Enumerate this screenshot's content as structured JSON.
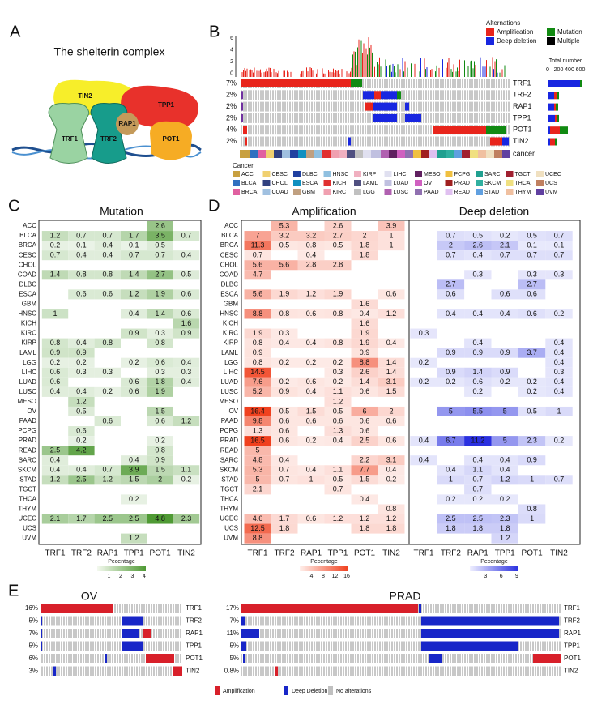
{
  "panels": {
    "a": {
      "letter": "A",
      "title": "The shelterin complex",
      "proteins": [
        "TIN2",
        "TPP1",
        "RAP1",
        "TRF1",
        "TRF2",
        "POT1"
      ]
    },
    "b": {
      "letter": "B",
      "legend_title": "Alternations",
      "legend": [
        "Amplification",
        "Mutation",
        "Deep deletion",
        "Multiple"
      ],
      "y_ticks": [
        6,
        4,
        2,
        0
      ],
      "genes": [
        {
          "pct": "7%",
          "name": "TRF1"
        },
        {
          "pct": "2%",
          "name": "TRF2"
        },
        {
          "pct": "2%",
          "name": "RAP1"
        },
        {
          "pct": "2%",
          "name": "TPP1"
        },
        {
          "pct": "4%",
          "name": "POT1"
        },
        {
          "pct": "2%",
          "name": "TIN2"
        }
      ],
      "total_title": "Total number",
      "total_ticks": [
        0,
        200,
        400,
        600
      ],
      "track": "cancer",
      "cancer_title": "Cancer",
      "cancers": [
        {
          "name": "ACC",
          "color": "#c8a040"
        },
        {
          "name": "BLCA",
          "color": "#3070c0"
        },
        {
          "name": "BRCA",
          "color": "#e060a0"
        },
        {
          "name": "CESC",
          "color": "#f0d070"
        },
        {
          "name": "CHOL",
          "color": "#304080"
        },
        {
          "name": "COAD",
          "color": "#a0c0e0"
        },
        {
          "name": "DLBC",
          "color": "#2040a0"
        },
        {
          "name": "ESCA",
          "color": "#1090c0"
        },
        {
          "name": "GBM",
          "color": "#c0a080"
        },
        {
          "name": "HNSC",
          "color": "#90c0e0"
        },
        {
          "name": "KICH",
          "color": "#e03030"
        },
        {
          "name": "KIRC",
          "color": "#f0a0b0"
        },
        {
          "name": "KIRP",
          "color": "#f0b0c0"
        },
        {
          "name": "LAML",
          "color": "#505080"
        },
        {
          "name": "LGG",
          "color": "#c0c0c0"
        },
        {
          "name": "LIHC",
          "color": "#e0e0f0"
        },
        {
          "name": "LUAD",
          "color": "#c0c0e0"
        },
        {
          "name": "LUSC",
          "color": "#b060b0"
        },
        {
          "name": "MESO",
          "color": "#602060"
        },
        {
          "name": "OV",
          "color": "#d060c0"
        },
        {
          "name": "PAAD",
          "color": "#9070b0"
        },
        {
          "name": "PCPG",
          "color": "#f0c040"
        },
        {
          "name": "PRAD",
          "color": "#a02020"
        },
        {
          "name": "READ",
          "color": "#e0c0f0"
        },
        {
          "name": "SARC",
          "color": "#20a090"
        },
        {
          "name": "SKCM",
          "color": "#30b0a0"
        },
        {
          "name": "STAD",
          "color": "#60a0e0"
        },
        {
          "name": "TGCT",
          "color": "#a02030"
        },
        {
          "name": "THCA",
          "color": "#f0e080"
        },
        {
          "name": "THYM",
          "color": "#f0c0a0"
        },
        {
          "name": "UCEC",
          "color": "#f0e0c0"
        },
        {
          "name": "UCS",
          "color": "#c08060"
        },
        {
          "name": "UVM",
          "color": "#6040a0"
        }
      ]
    },
    "c": {
      "letter": "C",
      "title": "Mutation",
      "rows": [
        "ACC",
        "BLCA",
        "BRCA",
        "CESC",
        "CHOL",
        "COAD",
        "DLBC",
        "ESCA",
        "GBM",
        "HNSC",
        "KICH",
        "KIRC",
        "KIRP",
        "LAML",
        "LGG",
        "LIHC",
        "LUAD",
        "LUSC",
        "MESO",
        "OV",
        "PAAD",
        "PCPG",
        "PRAD",
        "READ",
        "SARC",
        "SKCM",
        "STAD",
        "TGCT",
        "THCA",
        "THYM",
        "UCEC",
        "UCS",
        "UVM"
      ],
      "columns": [
        "TRF1",
        "TRF2",
        "RAP1",
        "TPP1",
        "POT1",
        "TIN2"
      ],
      "values": [
        [
          null,
          null,
          null,
          null,
          2.6,
          null
        ],
        [
          1.2,
          0.7,
          0.7,
          1.7,
          3.5,
          0.7
        ],
        [
          0.2,
          0.1,
          0.4,
          0.1,
          0.5,
          null
        ],
        [
          0.7,
          0.4,
          0.4,
          0.7,
          0.7,
          0.4
        ],
        [
          null,
          null,
          null,
          null,
          null,
          null
        ],
        [
          1.4,
          0.8,
          0.8,
          1.4,
          2.7,
          0.5
        ],
        [
          null,
          null,
          null,
          null,
          null,
          null
        ],
        [
          null,
          0.6,
          0.6,
          1.2,
          1.9,
          0.6
        ],
        [
          null,
          null,
          null,
          null,
          null,
          null
        ],
        [
          1,
          null,
          null,
          0.4,
          1.4,
          0.6
        ],
        [
          null,
          null,
          null,
          null,
          null,
          1.6
        ],
        [
          null,
          null,
          null,
          0.9,
          0.3,
          0.9
        ],
        [
          0.8,
          0.4,
          0.8,
          null,
          0.8,
          null
        ],
        [
          0.9,
          0.9,
          null,
          null,
          null,
          null
        ],
        [
          0.2,
          0.2,
          null,
          0.2,
          0.6,
          0.4
        ],
        [
          0.6,
          0.3,
          0.3,
          null,
          0.3,
          0.3
        ],
        [
          0.6,
          null,
          null,
          0.6,
          1.8,
          0.4
        ],
        [
          0.4,
          0.4,
          0.2,
          0.6,
          1.9,
          null
        ],
        [
          null,
          1.2,
          null,
          null,
          null,
          null
        ],
        [
          null,
          0.5,
          null,
          null,
          1.5,
          null
        ],
        [
          null,
          null,
          0.6,
          null,
          0.6,
          1.2
        ],
        [
          null,
          0.6,
          null,
          null,
          null,
          null
        ],
        [
          null,
          0.2,
          null,
          null,
          0.2,
          null
        ],
        [
          2.5,
          4.2,
          null,
          null,
          0.8,
          null
        ],
        [
          0.4,
          null,
          null,
          0.4,
          0.9,
          null
        ],
        [
          0.4,
          0.4,
          0.7,
          3.9,
          1.5,
          1.1
        ],
        [
          1.2,
          2.5,
          1.2,
          1.5,
          2,
          0.2
        ],
        [
          null,
          null,
          null,
          null,
          null,
          null
        ],
        [
          null,
          null,
          null,
          0.2,
          null,
          null
        ],
        [
          null,
          null,
          null,
          null,
          null,
          null
        ],
        [
          2.1,
          1.7,
          2.5,
          2.5,
          4.8,
          2.3
        ],
        [
          null,
          null,
          null,
          null,
          null,
          null
        ],
        [
          null,
          null,
          null,
          1.2,
          null,
          null
        ]
      ],
      "legend_title": "Pecentage",
      "legend_ticks": [
        1,
        2,
        3,
        4
      ]
    },
    "d": {
      "letter": "D",
      "rows": [
        "ACC",
        "BLCA",
        "BRCA",
        "CESC",
        "CHOL",
        "COAD",
        "DLBC",
        "ESCA",
        "GBM",
        "HNSC",
        "KICH",
        "KIRC",
        "KIRP",
        "LAML",
        "LGG",
        "LIHC",
        "LUAD",
        "LUSC",
        "MESO",
        "OV",
        "PAAD",
        "PCPG",
        "PRAD",
        "READ",
        "SARC",
        "SKCM",
        "STAD",
        "TGCT",
        "THCA",
        "THYM",
        "UCEC",
        "UCS",
        "UVM"
      ],
      "columns": [
        "TRF1",
        "TRF2",
        "RAP1",
        "TPP1",
        "POT1",
        "TIN2"
      ],
      "amplification": {
        "title": "Amplification",
        "legend_title": "Pecentage",
        "legend_ticks": [
          4,
          8,
          12,
          16
        ],
        "values": [
          [
            null,
            5.3,
            null,
            2.6,
            null,
            3.9
          ],
          [
            7,
            3.2,
            3.2,
            2.7,
            2,
            1
          ],
          [
            11.3,
            0.5,
            0.8,
            0.5,
            1.8,
            1
          ],
          [
            0.7,
            null,
            0.4,
            null,
            1.8,
            null
          ],
          [
            5.6,
            5.6,
            2.8,
            2.8,
            null,
            null
          ],
          [
            4.7,
            null,
            null,
            null,
            null,
            null
          ],
          [
            null,
            null,
            null,
            null,
            null,
            null
          ],
          [
            5.6,
            1.9,
            1.2,
            1.9,
            null,
            0.6
          ],
          [
            null,
            null,
            null,
            null,
            1.6,
            null
          ],
          [
            8.8,
            0.8,
            0.6,
            0.8,
            0.4,
            1.2
          ],
          [
            null,
            null,
            null,
            null,
            1.6,
            null
          ],
          [
            1.9,
            0.3,
            null,
            null,
            1.9,
            null
          ],
          [
            0.8,
            0.4,
            0.4,
            0.8,
            1.9,
            0.4
          ],
          [
            0.9,
            null,
            null,
            null,
            0.9,
            null
          ],
          [
            0.8,
            0.2,
            0.2,
            0.2,
            8.8,
            1.4
          ],
          [
            14.5,
            null,
            null,
            0.3,
            2.6,
            1.4
          ],
          [
            7.6,
            0.2,
            0.6,
            0.2,
            1.4,
            3.1
          ],
          [
            5.2,
            0.9,
            0.4,
            1.1,
            0.6,
            1.5
          ],
          [
            null,
            null,
            null,
            1.2,
            null,
            null
          ],
          [
            16.4,
            0.5,
            1.5,
            0.5,
            6,
            2
          ],
          [
            9.8,
            0.6,
            0.6,
            0.6,
            0.6,
            0.6
          ],
          [
            1.3,
            0.6,
            null,
            1.3,
            0.6,
            null
          ],
          [
            16.5,
            0.6,
            0.2,
            0.4,
            2.5,
            0.6
          ],
          [
            5,
            null,
            null,
            null,
            null,
            null
          ],
          [
            4.8,
            0.4,
            null,
            null,
            2.2,
            3.1
          ],
          [
            5.3,
            0.7,
            0.4,
            1.1,
            7.7,
            0.4
          ],
          [
            5,
            0.7,
            1,
            0.5,
            1.5,
            0.2
          ],
          [
            2.1,
            null,
            null,
            0.7,
            null,
            null
          ],
          [
            null,
            null,
            null,
            null,
            0.4,
            null
          ],
          [
            null,
            null,
            null,
            null,
            null,
            0.8
          ],
          [
            4.6,
            1.7,
            0.6,
            1.2,
            1.2,
            1.2
          ],
          [
            12.5,
            1.8,
            null,
            null,
            1.8,
            1.8
          ],
          [
            8.8,
            null,
            null,
            null,
            null,
            null
          ]
        ]
      },
      "deletion": {
        "title": "Deep deletion",
        "legend_title": "Pecentage",
        "legend_ticks": [
          3,
          6,
          9
        ],
        "values": [
          [
            null,
            null,
            null,
            null,
            null,
            null
          ],
          [
            null,
            0.7,
            0.5,
            0.2,
            0.5,
            0.7
          ],
          [
            null,
            2,
            2.6,
            2.1,
            0.1,
            0.1
          ],
          [
            null,
            0.7,
            0.4,
            0.7,
            0.7,
            0.7
          ],
          [
            null,
            null,
            null,
            null,
            null,
            null
          ],
          [
            null,
            null,
            0.3,
            null,
            0.3,
            0.3
          ],
          [
            null,
            2.7,
            null,
            null,
            2.7,
            null
          ],
          [
            null,
            0.6,
            null,
            0.6,
            0.6,
            null
          ],
          [
            null,
            null,
            null,
            null,
            null,
            null
          ],
          [
            null,
            0.4,
            0.4,
            0.4,
            0.6,
            0.2
          ],
          [
            null,
            null,
            null,
            null,
            null,
            null
          ],
          [
            0.3,
            null,
            null,
            null,
            null,
            null
          ],
          [
            null,
            null,
            0.4,
            null,
            null,
            0.4
          ],
          [
            null,
            0.9,
            0.9,
            0.9,
            3.7,
            0.4
          ],
          [
            0.2,
            null,
            null,
            null,
            null,
            0.4
          ],
          [
            null,
            0.9,
            1.4,
            0.9,
            null,
            0.3
          ],
          [
            0.2,
            0.2,
            0.6,
            0.2,
            0.2,
            0.4
          ],
          [
            null,
            null,
            0.2,
            null,
            0.2,
            0.4
          ],
          [
            null,
            null,
            null,
            null,
            null,
            null
          ],
          [
            null,
            5,
            5.5,
            5,
            0.5,
            1
          ],
          [
            null,
            null,
            null,
            null,
            null,
            null
          ],
          [
            null,
            null,
            null,
            null,
            null,
            null
          ],
          [
            0.4,
            6.7,
            11.2,
            5,
            2.3,
            0.2
          ],
          [
            null,
            null,
            null,
            null,
            null,
            null
          ],
          [
            0.4,
            null,
            0.4,
            0.4,
            0.9,
            null
          ],
          [
            null,
            0.4,
            1.1,
            0.4,
            null,
            null
          ],
          [
            null,
            1,
            0.7,
            1.2,
            1,
            0.7
          ],
          [
            null,
            null,
            0.7,
            null,
            null,
            null
          ],
          [
            null,
            0.2,
            0.2,
            0.2,
            null,
            null
          ],
          [
            null,
            null,
            null,
            null,
            0.8,
            null
          ],
          [
            null,
            2.5,
            2.5,
            2.3,
            1,
            null
          ],
          [
            null,
            1.8,
            1.8,
            1.8,
            null,
            null
          ],
          [
            null,
            null,
            null,
            1.2,
            null,
            null
          ]
        ]
      }
    },
    "e": {
      "letter": "E",
      "ov": {
        "title": "OV",
        "genes": [
          {
            "pct": "16%",
            "name": "TRF1"
          },
          {
            "pct": "5%",
            "name": "TRF2"
          },
          {
            "pct": "7%",
            "name": "RAP1"
          },
          {
            "pct": "5%",
            "name": "TPP1"
          },
          {
            "pct": "6%",
            "name": "POT1"
          },
          {
            "pct": "3%",
            "name": "TIN2"
          }
        ]
      },
      "prad": {
        "title": "PRAD",
        "genes": [
          {
            "pct": "17%",
            "name": "TRF1"
          },
          {
            "pct": "7%",
            "name": "TRF2"
          },
          {
            "pct": "11%",
            "name": "RAP1"
          },
          {
            "pct": "5%",
            "name": "TPP1"
          },
          {
            "pct": "5%",
            "name": "POT1"
          },
          {
            "pct": "0.8%",
            "name": "TIN2"
          }
        ]
      },
      "legend": [
        "Amplification",
        "Deep Deletion",
        "No alterations"
      ]
    }
  }
}
